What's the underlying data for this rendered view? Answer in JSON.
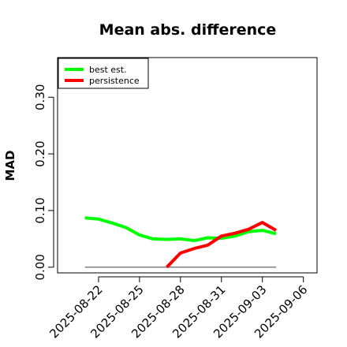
{
  "chart_data": {
    "type": "line",
    "title": "Mean abs. difference",
    "xlabel": "",
    "ylabel": "MAD",
    "ylim": [
      -0.01,
      0.37
    ],
    "yticks": [
      0.0,
      0.1,
      0.2,
      0.3
    ],
    "ytick_labels": [
      "0.00",
      "0.10",
      "0.20",
      "0.30"
    ],
    "xlim": [
      "2025-08-19",
      "2025-09-07"
    ],
    "xticks": [
      "2025-08-22",
      "2025-08-25",
      "2025-08-28",
      "2025-08-31",
      "2025-09-03",
      "2025-09-06"
    ],
    "grid": false,
    "legend_position": "top-left",
    "series": [
      {
        "name": "best est.",
        "color": "#00ff00",
        "x": [
          "2025-08-21",
          "2025-08-22",
          "2025-08-23",
          "2025-08-24",
          "2025-08-25",
          "2025-08-26",
          "2025-08-27",
          "2025-08-28",
          "2025-08-29",
          "2025-08-30",
          "2025-08-31",
          "2025-09-01",
          "2025-09-02",
          "2025-09-03",
          "2025-09-04"
        ],
        "values": [
          0.087,
          0.085,
          0.078,
          0.07,
          0.057,
          0.05,
          0.049,
          0.05,
          0.047,
          0.052,
          0.051,
          0.055,
          0.063,
          0.065,
          0.059
        ]
      },
      {
        "name": "persistence",
        "color": "#ff0000",
        "x": [
          "2025-08-27",
          "2025-08-28",
          "2025-08-29",
          "2025-08-30",
          "2025-08-31",
          "2025-09-01",
          "2025-09-02",
          "2025-09-03",
          "2025-09-04"
        ],
        "values": [
          0.0,
          0.025,
          0.033,
          0.039,
          0.055,
          0.06,
          0.067,
          0.079,
          0.065
        ]
      }
    ],
    "reference_line": {
      "value": 0.0,
      "x_range": [
        "2025-08-21",
        "2025-09-04"
      ],
      "color": "#555555"
    }
  }
}
